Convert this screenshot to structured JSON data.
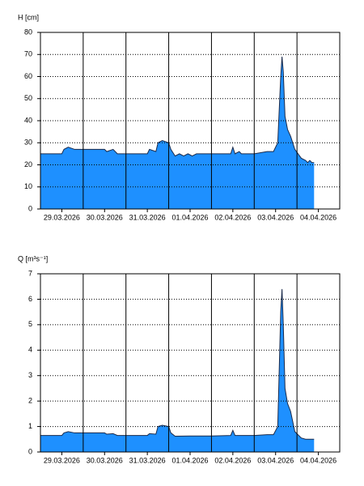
{
  "chart_data": [
    {
      "type": "area",
      "ylabel": "H [cm]",
      "color": "#1e90ff",
      "x": [
        0,
        0.5,
        0.55,
        0.65,
        0.8,
        1.0,
        1.5,
        1.55,
        1.7,
        1.8,
        2.5,
        2.55,
        2.7,
        2.75,
        2.85,
        3.0,
        3.05,
        3.15,
        3.25,
        3.35,
        3.45,
        3.55,
        3.65,
        4.0,
        4.45,
        4.5,
        4.55,
        4.65,
        4.7,
        5.0,
        5.3,
        5.45,
        5.55,
        5.62,
        5.65,
        5.68,
        5.72,
        5.78,
        5.85,
        5.95,
        6.1,
        6.2,
        6.25,
        6.3,
        6.35,
        6.4
      ],
      "values": [
        25,
        25,
        27,
        28,
        27,
        27,
        27,
        26,
        27,
        25,
        25,
        27,
        26,
        30,
        31,
        30,
        27,
        24,
        25,
        24,
        25,
        24,
        25,
        25,
        25,
        28,
        25,
        26,
        25,
        25,
        26,
        26,
        30,
        60,
        69,
        62,
        42,
        36,
        33,
        27,
        23,
        22,
        21,
        22,
        21,
        21
      ],
      "xlim": [
        0,
        7
      ],
      "xticks": [
        {
          "value": 0.5,
          "label": "29.03.2026"
        },
        {
          "value": 1.5,
          "label": "30.03.2026"
        },
        {
          "value": 2.5,
          "label": "31.03.2026"
        },
        {
          "value": 3.5,
          "label": "01.04.2026"
        },
        {
          "value": 4.5,
          "label": "02.04.2026"
        },
        {
          "value": 5.5,
          "label": "03.04.2026"
        },
        {
          "value": 6.5,
          "label": "04.04.2026"
        }
      ],
      "xgrid": [
        1,
        2,
        3,
        4,
        5,
        6
      ],
      "ylim": [
        0,
        80
      ],
      "yticks": [
        0,
        10,
        20,
        30,
        40,
        50,
        60,
        70,
        80
      ],
      "grid": true
    },
    {
      "type": "area",
      "ylabel": "Q [m³s⁻¹]",
      "color": "#1e90ff",
      "x": [
        0,
        0.5,
        0.55,
        0.65,
        0.8,
        1.5,
        1.55,
        1.7,
        1.8,
        2.5,
        2.55,
        2.7,
        2.75,
        2.85,
        3.0,
        3.05,
        3.15,
        3.5,
        4.0,
        4.45,
        4.5,
        4.55,
        5.0,
        5.3,
        5.45,
        5.55,
        5.62,
        5.65,
        5.68,
        5.72,
        5.78,
        5.85,
        5.95,
        6.1,
        6.2,
        6.4
      ],
      "values": [
        0.65,
        0.65,
        0.75,
        0.8,
        0.75,
        0.75,
        0.7,
        0.72,
        0.65,
        0.65,
        0.72,
        0.7,
        1.0,
        1.05,
        1.0,
        0.75,
        0.62,
        0.63,
        0.63,
        0.65,
        0.85,
        0.65,
        0.65,
        0.68,
        0.68,
        1.0,
        5.5,
        6.4,
        5.0,
        2.5,
        1.9,
        1.6,
        0.8,
        0.55,
        0.5,
        0.5
      ],
      "xlim": [
        0,
        7
      ],
      "xticks": [
        {
          "value": 0.5,
          "label": "29.03.2026"
        },
        {
          "value": 1.5,
          "label": "30.03.2026"
        },
        {
          "value": 2.5,
          "label": "31.03.2026"
        },
        {
          "value": 3.5,
          "label": "01.04.2026"
        },
        {
          "value": 4.5,
          "label": "02.04.2026"
        },
        {
          "value": 5.5,
          "label": "03.04.2026"
        },
        {
          "value": 6.5,
          "label": "04.04.2026"
        }
      ],
      "xgrid": [
        1,
        2,
        3,
        4,
        5,
        6
      ],
      "ylim": [
        0,
        7
      ],
      "yticks": [
        0,
        1,
        2,
        3,
        4,
        5,
        6,
        7
      ],
      "grid": true
    }
  ]
}
